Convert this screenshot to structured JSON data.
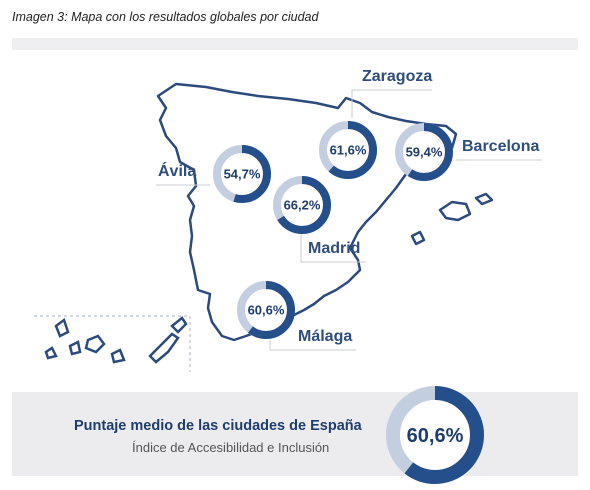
{
  "caption": "Imagen 3: Mapa con los resultados globales por ciudad",
  "colors": {
    "dark": "#244f8a",
    "light": "#c3cfe0",
    "land_outline": "#2c4a7c",
    "label": "#2f4d7a",
    "panel": "#ececee"
  },
  "cities": [
    {
      "id": "zaragoza",
      "name": "Zaragoza",
      "value": 61.6,
      "label": "61,6%"
    },
    {
      "id": "barcelona",
      "name": "Barcelona",
      "value": 59.4,
      "label": "59,4%"
    },
    {
      "id": "avila",
      "name": "Ávila",
      "value": 54.7,
      "label": "54,7%"
    },
    {
      "id": "madrid",
      "name": "Madrid",
      "value": 66.2,
      "label": "66,2%"
    },
    {
      "id": "malaga",
      "name": "Málaga",
      "value": 60.6,
      "label": "60,6%"
    }
  ],
  "average": {
    "title": "Puntaje medio de las ciudades de España",
    "subtitle": "Índice de Accesibilidad e Inclusión",
    "value": 60.6,
    "label": "60,6%"
  }
}
